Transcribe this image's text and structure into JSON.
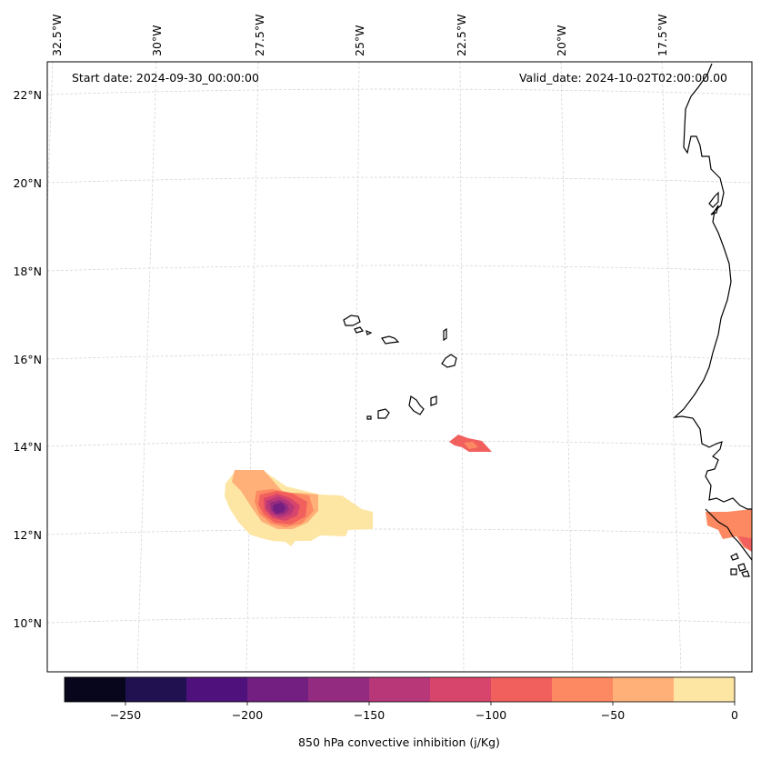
{
  "map": {
    "start_date": "Start date: 2024-09-30_00:00:00",
    "valid_date": "Valid_date: 2024-10-02T02:00:00.00",
    "lon_labels": [
      "32.5°W",
      "30°W",
      "27.5°W",
      "25°W",
      "22.5°W",
      "20°W",
      "17.5°W"
    ],
    "lat_labels": [
      "22°N",
      "20°N",
      "18°N",
      "16°N",
      "14°N",
      "12°N",
      "10°N"
    ],
    "coastline_color": "#000000",
    "gridline_color": "#cccccc"
  },
  "colorbar": {
    "label": "850 hPa convective inhibition (j/Kg)",
    "tick_labels": [
      "−250",
      "−200",
      "−150",
      "−100",
      "−50",
      "0"
    ],
    "levels": [
      -275,
      -250,
      -225,
      -200,
      -175,
      -150,
      -125,
      -100,
      -75,
      -50,
      -25,
      0
    ],
    "colors": [
      "#07061c",
      "#221150",
      "#4f117b",
      "#721f81",
      "#932b80",
      "#b73779",
      "#d8456c",
      "#f1605d",
      "#fc8961",
      "#feb078",
      "#fde6a4"
    ]
  }
}
